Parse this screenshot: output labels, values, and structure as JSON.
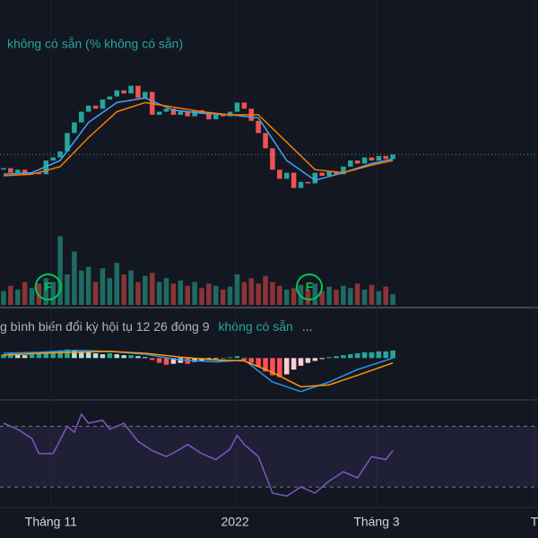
{
  "chart_data": [
    {
      "type": "candlestick",
      "legend": "không có sẵn (% không có sẵn)",
      "up_color": "#26a69a",
      "down_color": "#ef5350",
      "first_open": 24,
      "closes": [
        25,
        22,
        24,
        21,
        22,
        21,
        30,
        32,
        36,
        48,
        55,
        62,
        66,
        64,
        70,
        72,
        76,
        74,
        79,
        71,
        75,
        60,
        62,
        64,
        60,
        62,
        59,
        63,
        61,
        57,
        60,
        59,
        62,
        68,
        64,
        56,
        48,
        38,
        24,
        18,
        22,
        12,
        16,
        15,
        22,
        20,
        23,
        21,
        26,
        30,
        28,
        32,
        30,
        33,
        31,
        34
      ],
      "ylim": [
        0,
        100
      ],
      "last_price_line": true,
      "series": [
        {
          "color": "#42a5f5",
          "x": [
            0,
            4,
            8,
            12,
            16,
            20,
            24,
            28,
            32,
            36,
            40,
            44,
            48,
            52,
            55
          ],
          "values": [
            21,
            22,
            30,
            55,
            68,
            71,
            63,
            61,
            60,
            58,
            30,
            17,
            22,
            28,
            31
          ]
        },
        {
          "color": "#f57c00",
          "x": [
            0,
            4,
            8,
            12,
            16,
            20,
            24,
            28,
            32,
            36,
            40,
            44,
            48,
            52,
            55
          ],
          "values": [
            20,
            21,
            26,
            45,
            62,
            68,
            65,
            62,
            60,
            60,
            42,
            24,
            22,
            27,
            30
          ]
        }
      ]
    },
    {
      "type": "bar",
      "up_color": "#1f6b62",
      "down_color": "#8a3437",
      "ylim": [
        0,
        100
      ],
      "values": [
        18,
        25,
        20,
        30,
        22,
        28,
        35,
        30,
        90,
        40,
        70,
        45,
        50,
        30,
        48,
        35,
        55,
        40,
        45,
        30,
        38,
        42,
        30,
        35,
        28,
        32,
        25,
        30,
        22,
        28,
        25,
        20,
        24,
        40,
        30,
        35,
        28,
        38,
        30,
        25,
        20,
        22,
        26,
        20,
        28,
        18,
        24,
        20,
        25,
        22,
        28,
        20,
        26,
        18,
        24,
        14
      ],
      "markers": [
        {
          "x": 6.3,
          "label": "F"
        },
        {
          "x": 43.2,
          "label": "F"
        }
      ],
      "marker_color": "#00c853"
    },
    {
      "type": "macd",
      "title": "g bình biến đổi kỳ hội tụ 12 26 đóng 9",
      "value_text": "không có sẵn",
      "more": "...",
      "ylim": [
        -40,
        20
      ],
      "histogram": [
        4,
        5,
        4,
        3,
        4,
        5,
        6,
        7,
        8,
        9,
        8,
        7,
        6,
        5,
        4,
        5,
        4,
        3,
        3,
        2,
        1,
        -2,
        -5,
        -7,
        -6,
        -5,
        -6,
        -4,
        -3,
        -2,
        -1,
        0,
        1,
        2,
        -2,
        -5,
        -9,
        -14,
        -18,
        -20,
        -17,
        -12,
        -8,
        -5,
        -3,
        -1,
        1,
        2,
        3,
        4,
        5,
        6,
        6,
        7,
        7,
        8
      ],
      "series": [
        {
          "color": "#2196f3",
          "x": [
            0,
            5,
            10,
            15,
            20,
            25,
            30,
            34,
            38,
            42,
            46,
            50,
            55
          ],
          "values": [
            5,
            6,
            8,
            7,
            4,
            -2,
            -4,
            -2,
            -25,
            -35,
            -25,
            -12,
            0
          ]
        },
        {
          "color": "#ff9800",
          "x": [
            0,
            5,
            10,
            15,
            20,
            25,
            30,
            34,
            38,
            42,
            46,
            50,
            55
          ],
          "values": [
            3,
            5,
            6,
            7,
            5,
            1,
            -2,
            -3,
            -15,
            -30,
            -28,
            -18,
            -5
          ]
        }
      ]
    },
    {
      "type": "line",
      "ylim": [
        20,
        85
      ],
      "bands": [
        30,
        70
      ],
      "series": [
        {
          "color": "#7e57c2",
          "x": [
            0,
            2,
            4,
            5,
            7,
            9,
            10,
            11,
            12,
            14,
            15,
            17,
            19,
            21,
            23,
            25,
            26,
            28,
            30,
            32,
            33,
            34,
            36,
            37,
            38,
            40,
            42,
            44,
            46,
            48,
            50,
            52,
            54,
            55
          ],
          "values": [
            72,
            68,
            62,
            52,
            52,
            70,
            66,
            78,
            72,
            74,
            68,
            72,
            60,
            54,
            50,
            55,
            58,
            52,
            48,
            55,
            64,
            58,
            50,
            38,
            26,
            24,
            30,
            26,
            34,
            40,
            36,
            50,
            48,
            54
          ]
        }
      ]
    }
  ],
  "x_axis": {
    "xlim": [
      -0.5,
      75.5
    ],
    "xticks": [
      {
        "value": 6.7,
        "label": "Tháng 11"
      },
      {
        "value": 32.7,
        "label": "2022"
      },
      {
        "value": 52.7,
        "label": "Tháng 3"
      },
      {
        "value": 75,
        "label": "T"
      }
    ]
  }
}
